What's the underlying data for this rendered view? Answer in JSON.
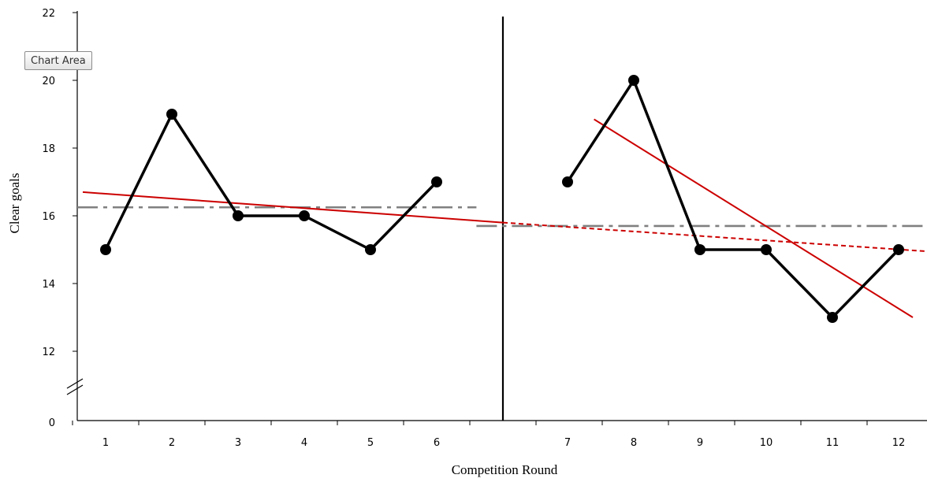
{
  "chart_data": {
    "type": "line",
    "xlabel": "Competition  Round",
    "ylabel": "Clear goals",
    "x_ticks": [
      "1",
      "2",
      "3",
      "4",
      "5",
      "6",
      "7",
      "8",
      "9",
      "10",
      "11",
      "12"
    ],
    "y_ticks": [
      "0",
      "12",
      "14",
      "16",
      "18",
      "20",
      "22"
    ],
    "y_axis_break": "between 0 and 12",
    "ylim": [
      11,
      22
    ],
    "phase_change_line": "between rounds 6 and 7",
    "series": [
      {
        "values": [
          15,
          19,
          16,
          16,
          15,
          17
        ],
        "x": [
          1,
          2,
          3,
          4,
          5,
          6
        ],
        "color": "#000000"
      },
      {
        "values": [
          17,
          20,
          15,
          15,
          13,
          15
        ],
        "x": [
          7,
          8,
          9,
          10,
          11,
          12
        ],
        "color": "#000000"
      }
    ],
    "trend_lines": [
      {
        "style": "solid",
        "color": "#cc0000",
        "from": [
          0.7,
          16.7
        ],
        "to": [
          6.6,
          15.8
        ]
      },
      {
        "style": "dashed",
        "color": "#cc0000",
        "from": [
          6.6,
          15.8
        ],
        "to": [
          13.0,
          14.95
        ]
      },
      {
        "style": "solid",
        "color": "#cc0000",
        "from": [
          7.4,
          18.85
        ],
        "to": [
          13.0,
          13.0
        ]
      }
    ],
    "mean_lines": [
      {
        "style": "dash-dot",
        "color": "#808080",
        "y": 16.25,
        "x_range": [
          0.7,
          6.6
        ]
      },
      {
        "style": "dash-dot",
        "color": "#808080",
        "y": 15.7,
        "x_range": [
          6.6,
          13.0
        ]
      }
    ],
    "grid": false,
    "legend": "none"
  },
  "tooltip": {
    "label": "Chart Area"
  }
}
